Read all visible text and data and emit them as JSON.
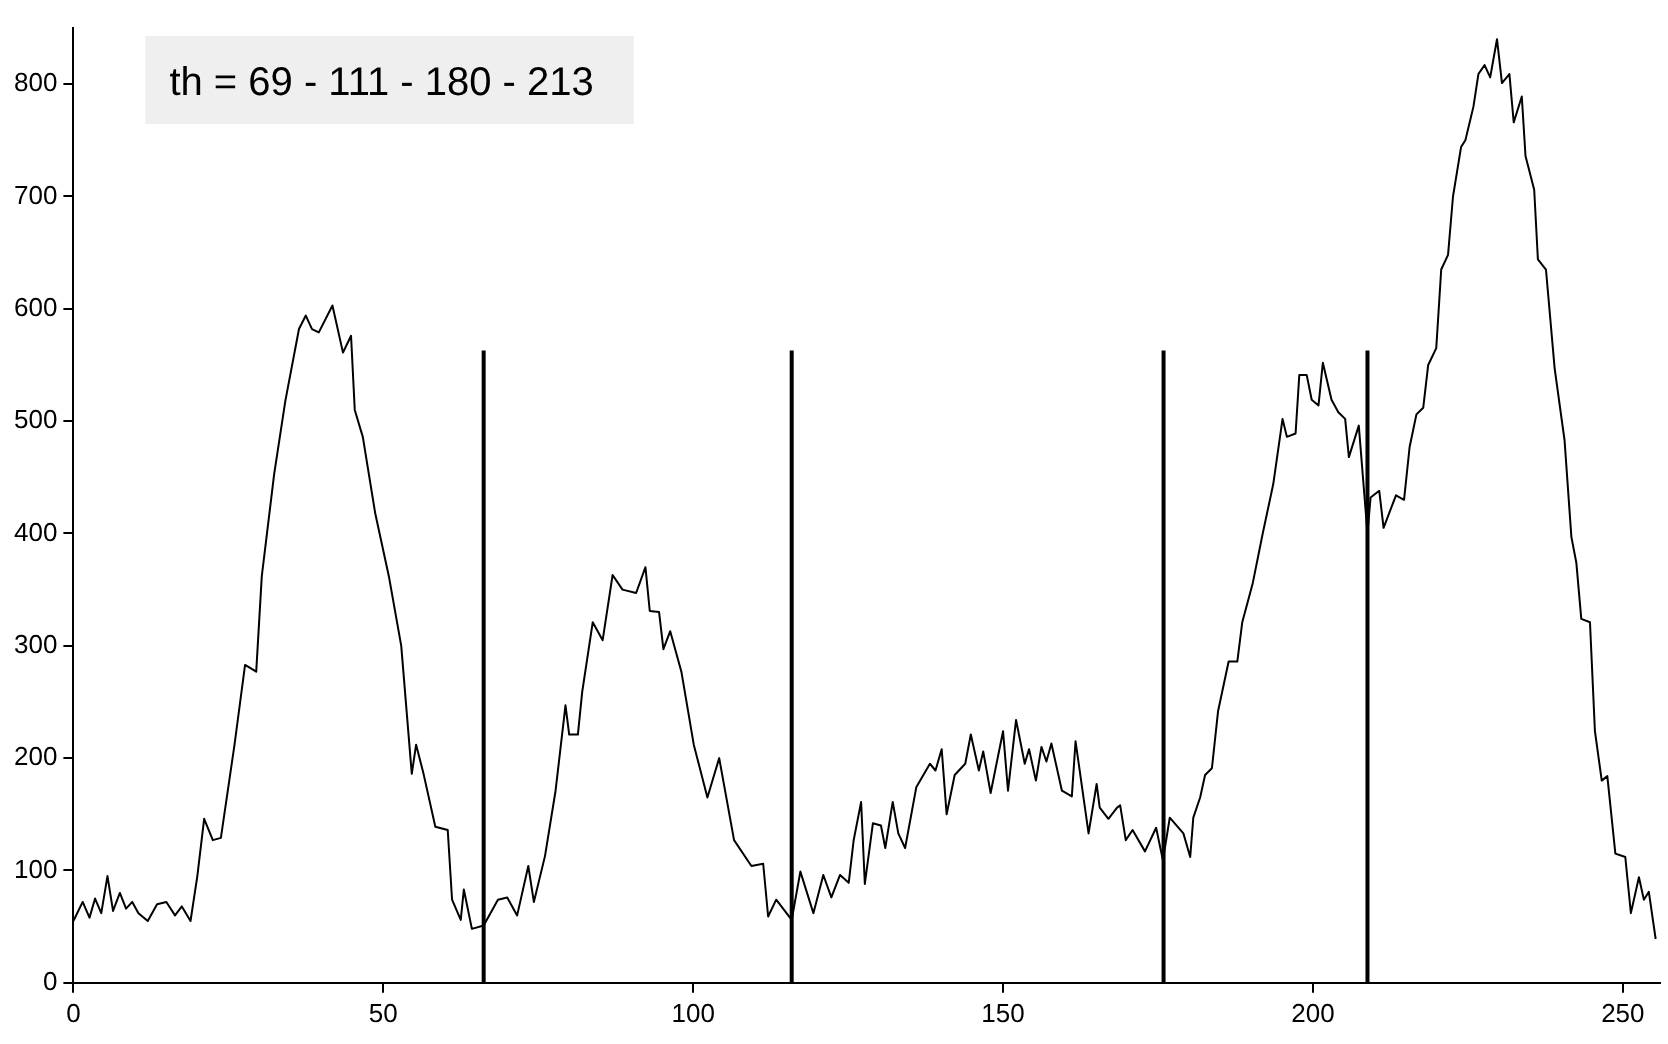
{
  "chart_data": {
    "type": "line",
    "marker": "none",
    "annotations": [
      "th = 69 - 111 - 180 - 213"
    ],
    "xlim": [
      0,
      256
    ],
    "xticks": [
      0,
      50,
      100,
      150,
      200,
      250
    ],
    "ylim": [
      0,
      850
    ],
    "yticks": [
      0,
      100,
      200,
      300,
      400,
      500,
      600,
      700,
      800
    ],
    "grid": false,
    "legend": false,
    "x": [
      0,
      1.5,
      2.6,
      3.5,
      4.5,
      5.5,
      6.4,
      7.5,
      8.5,
      9.5,
      10.5,
      12,
      13.5,
      15,
      16.4,
      17.5,
      18.9,
      20,
      21.1,
      22.5,
      23.8,
      26,
      27.7,
      29.5,
      30.4,
      32.4,
      34.2,
      36.4,
      37.5,
      38.5,
      39.6,
      41.8,
      43.5,
      44.8,
      45.4,
      46.7,
      48.7,
      50.9,
      52.9,
      54.6,
      55.3,
      56.5,
      58.4,
      60.4,
      61.1,
      62.5,
      63,
      64.3,
      66.2,
      68.5,
      70,
      71.6,
      73.4,
      74.3,
      76.1,
      77.8,
      79.4,
      80,
      81.4,
      82.1,
      83.8,
      85.4,
      87,
      88.6,
      90.8,
      92.3,
      93,
      94.5,
      95.2,
      96.3,
      98.1,
      100.1,
      102.3,
      104.2,
      106.6,
      109.4,
      111.3,
      112.1,
      113.4,
      115.9,
      117.3,
      119.4,
      121,
      122.3,
      123.7,
      125.1,
      125.9,
      127.1,
      127.7,
      129,
      130.3,
      131,
      132.2,
      133.1,
      134.2,
      136,
      138.2,
      139.1,
      140.1,
      140.9,
      142.2,
      143.9,
      144.8,
      146.1,
      146.8,
      148,
      150,
      150.8,
      152.1,
      153.5,
      154.2,
      155.3,
      156.2,
      157,
      157.8,
      159.5,
      161.1,
      161.7,
      163.8,
      165.1,
      165.6,
      167,
      168.4,
      168.9,
      169.8,
      170.9,
      172.9,
      174.7,
      175.8,
      176.9,
      179.1,
      180.2,
      180.7,
      181.8,
      182.6,
      183.7,
      184.7,
      186.4,
      187.8,
      188.6,
      190.3,
      191.9,
      193.6,
      195.1,
      195.8,
      197.2,
      197.8,
      199,
      199.8,
      200.9,
      201.6,
      203,
      204.1,
      205.2,
      205.8,
      207.4,
      208.8,
      209.3,
      210.7,
      211.4,
      213.4,
      214.7,
      215.6,
      216.7,
      217.8,
      218.6,
      219.9,
      220.7,
      221.8,
      222.6,
      223.9,
      224.6,
      225.9,
      226.7,
      227.7,
      228.6,
      229.7,
      230.5,
      231.7,
      232.4,
      233.7,
      234.3,
      235.7,
      236.3,
      237.6,
      239,
      240.6,
      241.7,
      242.5,
      243.3,
      244.7,
      245.5,
      246.6,
      247.5,
      248.8,
      250.4,
      251.3,
      252.6,
      253.4,
      254.2,
      255.3
    ],
    "series": [
      {
        "color": "#000000",
        "values": [
          55,
          72,
          58,
          75,
          62,
          95,
          64,
          80,
          66,
          72,
          62,
          55,
          70,
          72,
          60,
          68,
          55,
          95,
          146,
          127,
          129,
          212,
          283,
          277,
          362,
          453,
          518,
          582,
          594,
          582,
          579,
          603,
          561,
          576,
          510,
          486,
          418,
          362,
          300,
          186,
          212,
          186,
          139,
          136,
          74,
          56,
          83,
          48,
          51,
          74,
          76,
          60,
          104,
          72,
          113,
          171,
          247,
          221,
          221,
          259,
          321,
          305,
          363,
          350,
          347,
          370,
          331,
          330,
          297,
          313,
          277,
          212,
          165,
          200,
          127,
          104,
          106,
          59,
          74,
          56,
          99,
          62,
          96,
          76,
          96,
          89,
          127,
          161,
          88,
          142,
          140,
          120,
          161,
          133,
          120,
          174,
          195,
          189,
          208,
          150,
          185,
          195,
          221,
          189,
          206,
          169,
          224,
          171,
          234,
          195,
          208,
          180,
          210,
          197,
          213,
          171,
          166,
          215,
          133,
          177,
          156,
          146,
          156,
          158,
          127,
          136,
          117,
          138,
          109,
          147,
          133,
          112,
          147,
          165,
          185,
          191,
          242,
          286,
          286,
          321,
          356,
          400,
          444,
          502,
          486,
          489,
          541,
          541,
          519,
          514,
          552,
          519,
          508,
          502,
          468,
          496,
          400,
          432,
          438,
          405,
          434,
          430,
          477,
          506,
          512,
          550,
          565,
          635,
          648,
          700,
          744,
          750,
          780,
          809,
          817,
          806,
          840,
          801,
          809,
          766,
          789,
          736,
          706,
          644,
          635,
          547,
          483,
          397,
          374,
          324,
          321,
          224,
          180,
          184,
          115,
          112,
          62,
          94,
          74,
          81,
          39
        ]
      },
      {
        "type": "line",
        "color": "#000000",
        "x": [
          66.2,
          66.2
        ],
        "values": [
          0,
          563
        ]
      },
      {
        "type": "line",
        "color": "#000000",
        "x": [
          115.9,
          115.9
        ],
        "values": [
          0,
          563
        ]
      },
      {
        "type": "line",
        "color": "#000000",
        "x": [
          175.9,
          175.9
        ],
        "values": [
          0,
          563
        ]
      },
      {
        "type": "line",
        "color": "#000000",
        "x": [
          208.8,
          208.8
        ],
        "values": [
          0,
          563
        ]
      }
    ]
  }
}
